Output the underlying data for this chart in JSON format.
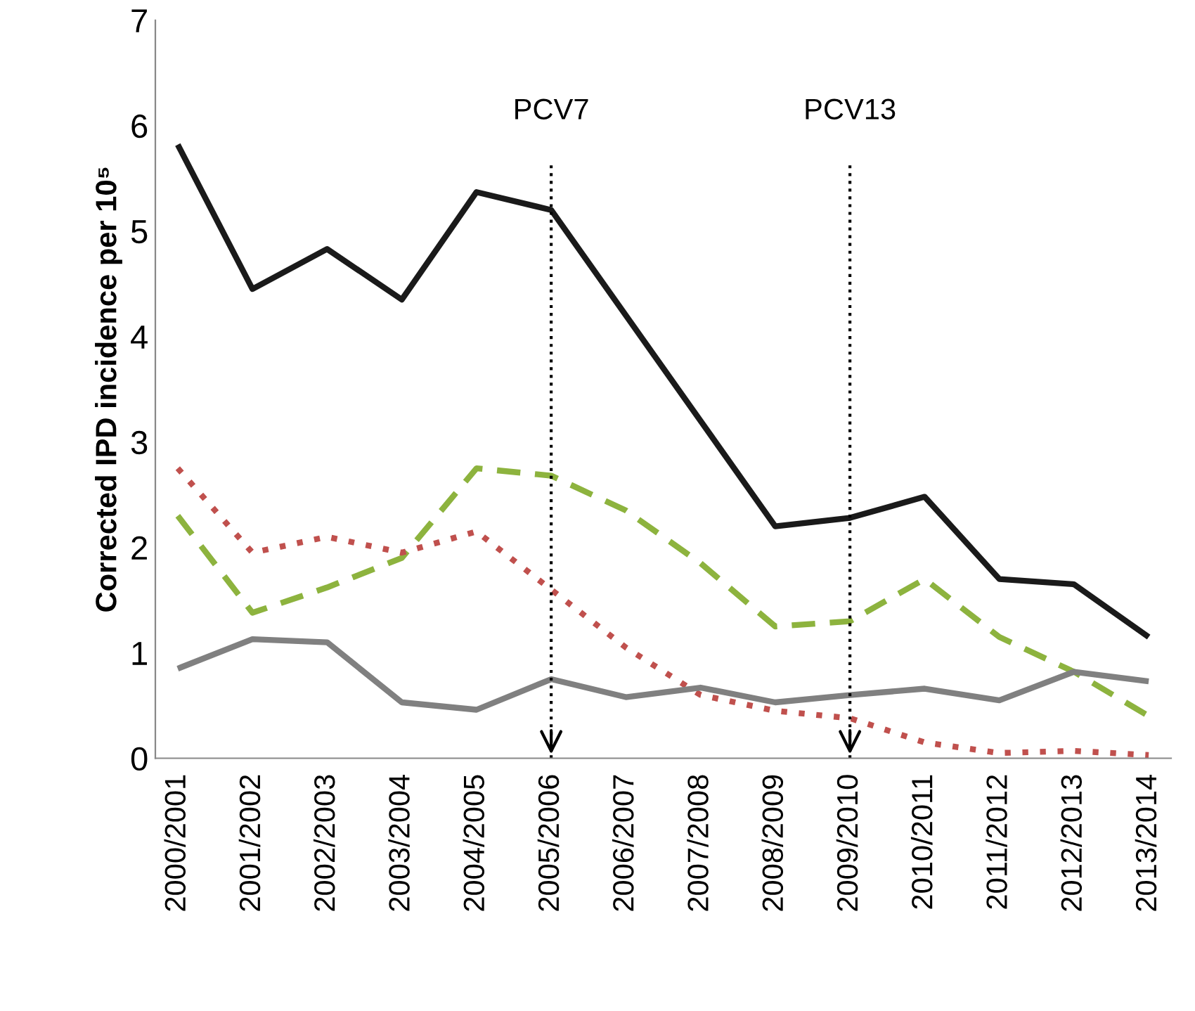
{
  "chart_data": {
    "type": "line",
    "ylabel": "Corrected IPD incidence per 10⁵",
    "categories": [
      "2000/2001",
      "2001/2002",
      "2002/2003",
      "2003/2004",
      "2004/2005",
      "2005/2006",
      "2006/2007",
      "2007/2008",
      "2008/2009",
      "2009/2010",
      "2010/2011",
      "2011/2012",
      "2012/2013",
      "2013/2014"
    ],
    "series": [
      {
        "color": "#1a1a1a",
        "line_style": "solid",
        "values": [
          5.82,
          4.45,
          4.83,
          4.35,
          5.37,
          5.2,
          4.2,
          3.2,
          2.2,
          2.28,
          2.48,
          1.7,
          1.65,
          1.15
        ]
      },
      {
        "color": "#8db33e",
        "line_style": "dashed",
        "values": [
          2.3,
          1.38,
          1.62,
          1.9,
          2.75,
          2.68,
          2.35,
          1.85,
          1.25,
          1.3,
          1.7,
          1.15,
          0.82,
          0.4
        ]
      },
      {
        "color": "#c0504d",
        "line_style": "dotted",
        "values": [
          2.75,
          1.95,
          2.1,
          1.95,
          2.15,
          1.6,
          1.05,
          0.6,
          0.45,
          0.38,
          0.15,
          0.05,
          0.07,
          0.03
        ]
      },
      {
        "color": "#808080",
        "line_style": "solid",
        "values": [
          0.85,
          1.13,
          1.1,
          0.53,
          0.46,
          0.75,
          0.58,
          0.67,
          0.53,
          0.6,
          0.66,
          0.55,
          0.82,
          0.73
        ]
      }
    ],
    "ref_lines": [
      {
        "axis": "x",
        "value": "2005/2006",
        "label": "PCV7",
        "color": "#000000",
        "line_style": "dotted"
      },
      {
        "axis": "x",
        "value": "2009/2010",
        "label": "PCV13",
        "color": "#000000",
        "line_style": "dotted"
      }
    ],
    "ylim": [
      0,
      7
    ],
    "yticks": [
      0,
      1,
      2,
      3,
      4,
      5,
      6,
      7
    ],
    "grid": false,
    "legend": false,
    "marker": "none"
  }
}
